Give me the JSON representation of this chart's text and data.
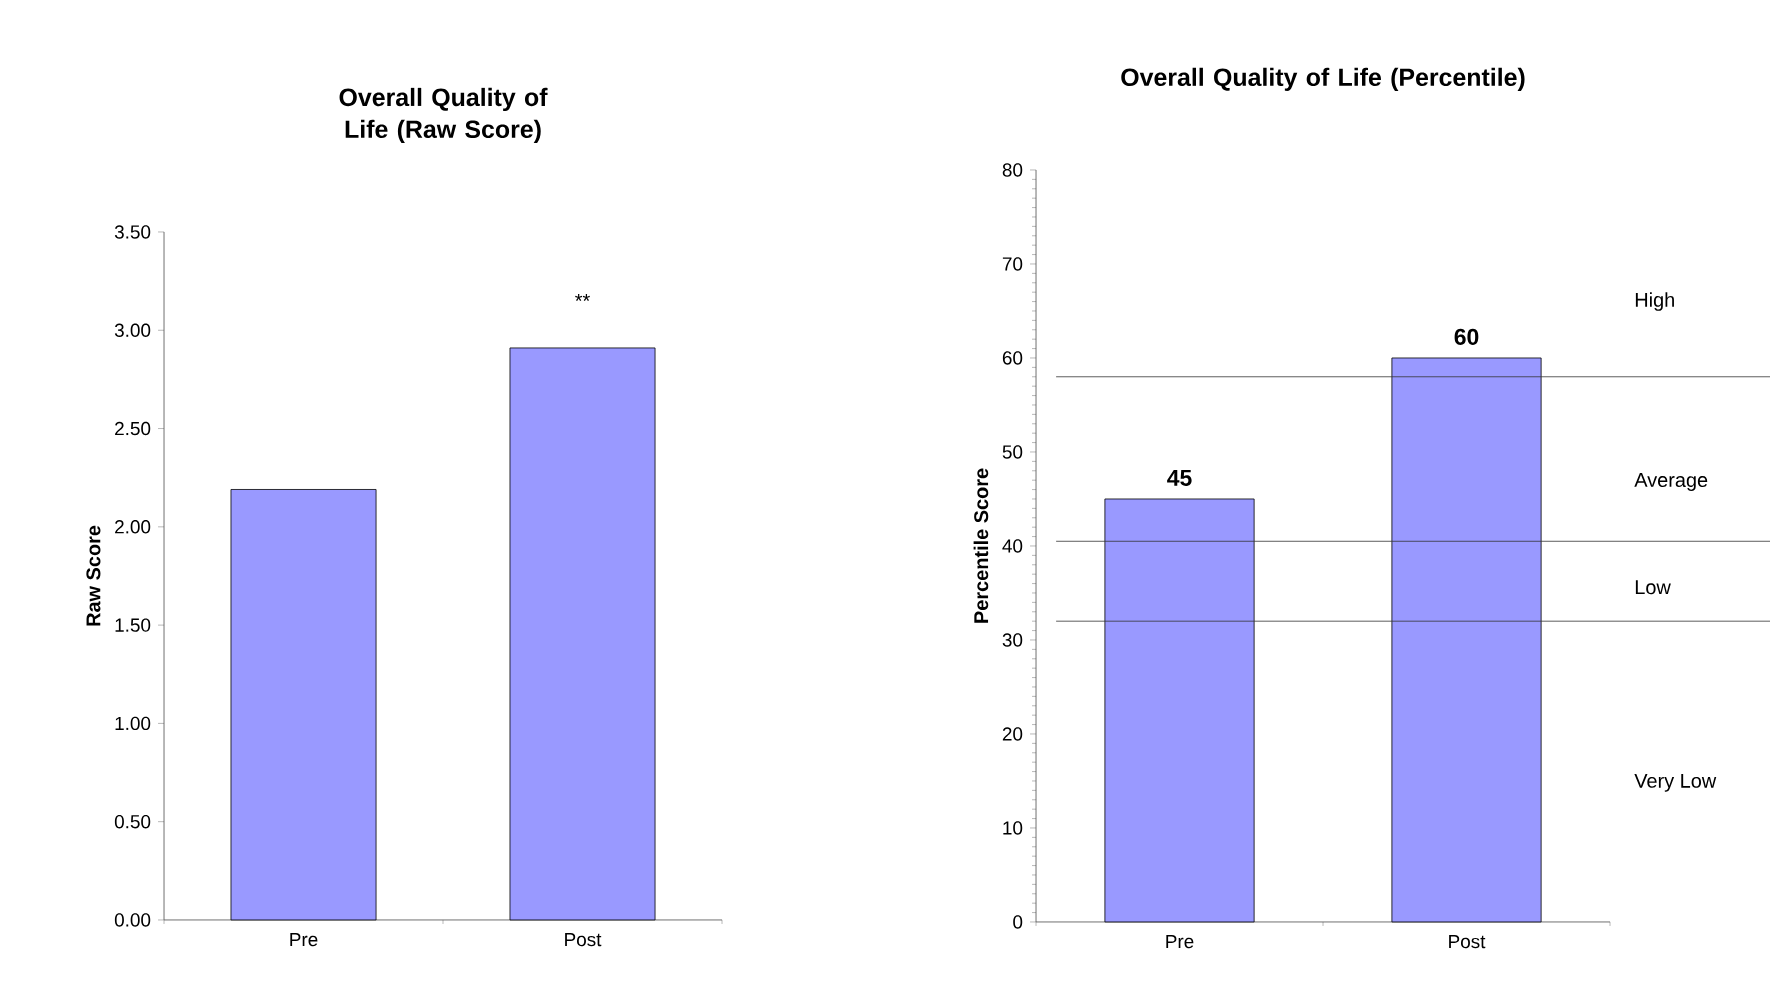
{
  "chart_data": [
    {
      "type": "bar",
      "title": "Overall Quality of Life (Raw Score)",
      "ylabel": "Raw Score",
      "categories": [
        "Pre",
        "Post"
      ],
      "values": [
        2.19,
        2.91
      ],
      "color": "#9999ff",
      "ylim": [
        0,
        3.5
      ],
      "yticks": [
        {
          "value": 0,
          "label": "0.00"
        },
        {
          "value": 0.5,
          "label": "0.50"
        },
        {
          "value": 1,
          "label": "1.00"
        },
        {
          "value": 1.5,
          "label": "1.50"
        },
        {
          "value": 2,
          "label": "2.00"
        },
        {
          "value": 2.5,
          "label": "2.50"
        },
        {
          "value": 3,
          "label": "3.00"
        },
        {
          "value": 3.5,
          "label": "3.50"
        }
      ],
      "annotations": [
        "**"
      ]
    },
    {
      "type": "bar",
      "title": "Overall Quality of Life (Percentile)",
      "ylabel": "Percentile Score",
      "categories": [
        "Pre",
        "Post"
      ],
      "values": [
        45,
        60
      ],
      "color": "#9999ff",
      "ylim": [
        0,
        80
      ],
      "yticks": [
        0,
        10,
        20,
        30,
        40,
        50,
        60,
        70,
        80
      ],
      "data_labels": true,
      "ref_lines": [
        {
          "axis": "y",
          "value": 58
        },
        {
          "axis": "y",
          "value": 40.5
        },
        {
          "axis": "y",
          "value": 32
        }
      ],
      "annotations": [
        "High",
        "Average",
        "Low",
        "Very Low"
      ]
    }
  ]
}
